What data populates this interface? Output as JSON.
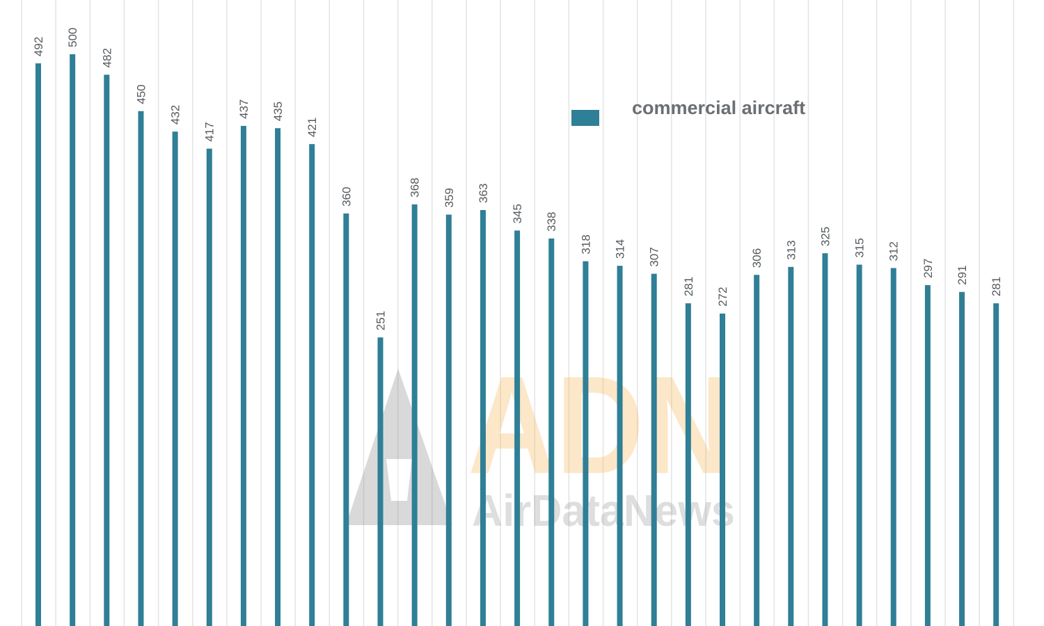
{
  "chart_data": {
    "type": "bar",
    "values": [
      492,
      500,
      482,
      450,
      432,
      417,
      437,
      435,
      421,
      360,
      251,
      368,
      359,
      363,
      345,
      338,
      318,
      314,
      307,
      281,
      272,
      306,
      313,
      325,
      315,
      312,
      297,
      291,
      281
    ],
    "series": [
      {
        "name": "commercial aircraft"
      }
    ],
    "grid": "vertical lines",
    "legend_placement": "top-center-right",
    "bar_color": "#2f7f96"
  },
  "legend": {
    "label": "commercial aircraft",
    "color": "#2f7f96"
  },
  "watermark": {
    "logo": "ADN",
    "name": "AirDataNews",
    "color": "#f6b65a"
  }
}
